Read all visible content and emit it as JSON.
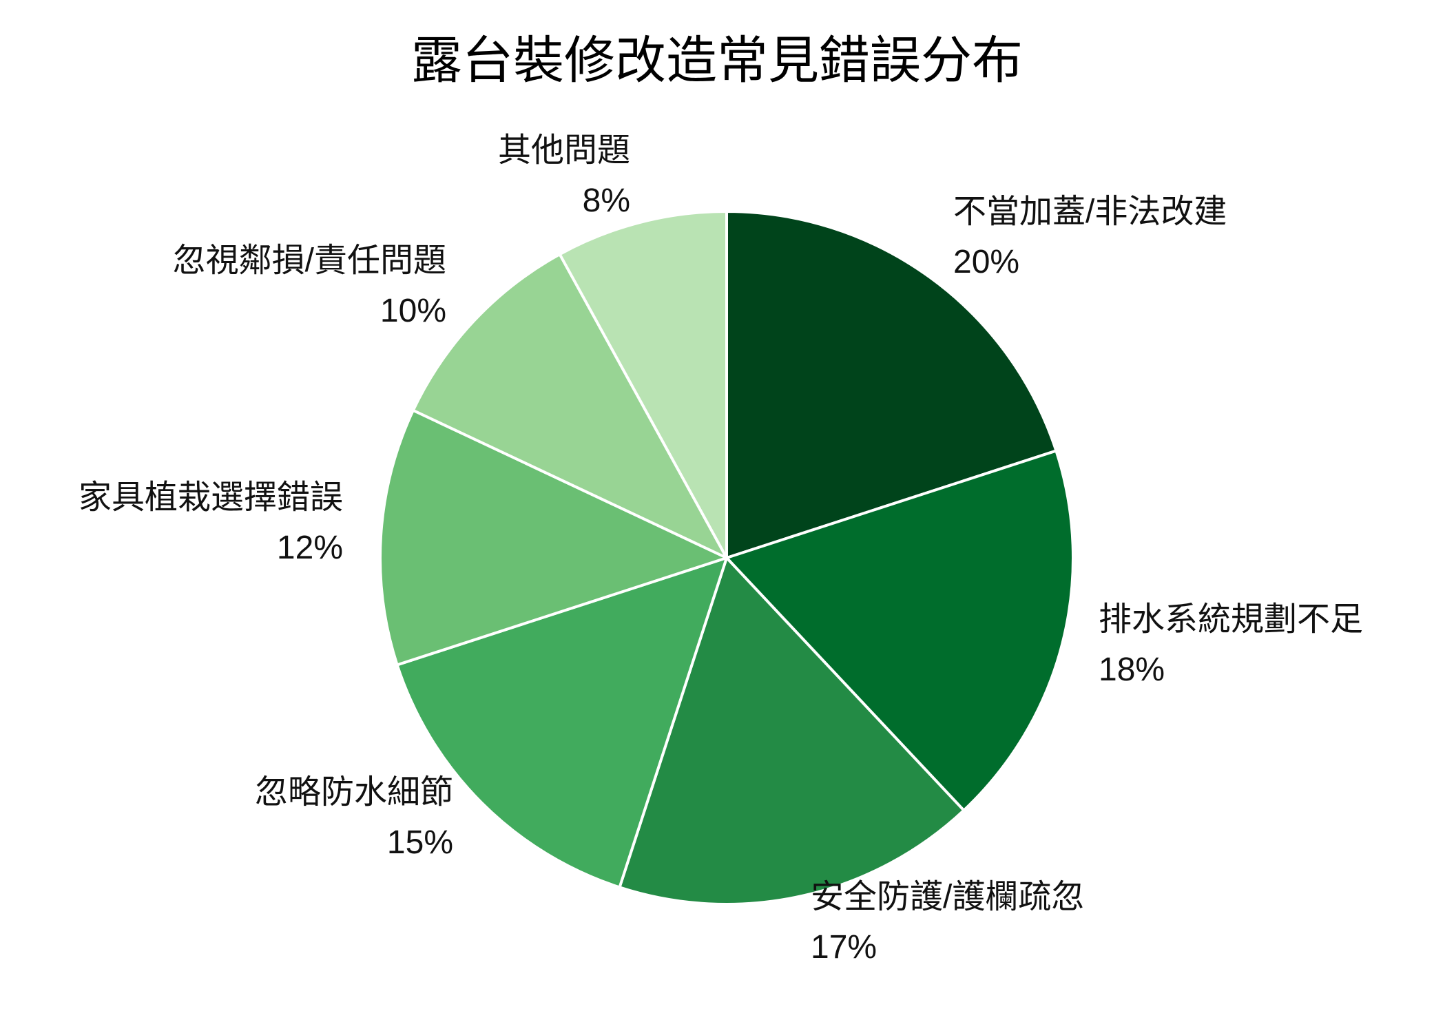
{
  "chart_data": {
    "type": "pie",
    "title": "露台裝修改造常見錯誤分布",
    "start_angle": "12 o'clock, clockwise",
    "slices": [
      {
        "label": "不當加蓋/非法改建",
        "value": 20,
        "value_label": "20%",
        "color": "#00441b"
      },
      {
        "label": "排水系統規劃不足",
        "value": 18,
        "value_label": "18%",
        "color": "#006d2c"
      },
      {
        "label": "安全防護/護欄疏忽",
        "value": 17,
        "value_label": "17%",
        "color": "#238b45"
      },
      {
        "label": "忽略防水細節",
        "value": 15,
        "value_label": "15%",
        "color": "#41ab5d"
      },
      {
        "label": "家具植栽選擇錯誤",
        "value": 12,
        "value_label": "12%",
        "color": "#6abf73"
      },
      {
        "label": "忽視鄰損/責任問題",
        "value": 10,
        "value_label": "10%",
        "color": "#98d494"
      },
      {
        "label": "其他問題",
        "value": 8,
        "value_label": "8%",
        "color": "#b9e3b3"
      }
    ],
    "legend": "none"
  }
}
